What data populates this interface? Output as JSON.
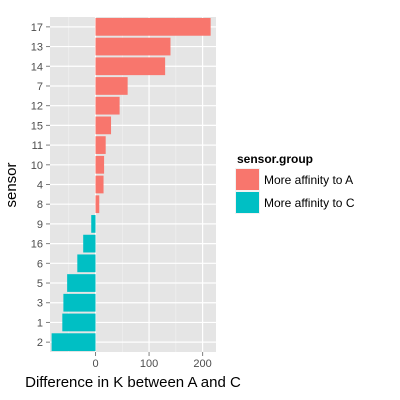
{
  "chart_data": {
    "type": "bar",
    "orientation": "horizontal",
    "xlabel": "Difference in K between A and C",
    "ylabel": "sensor",
    "xlim": [
      -85,
      225
    ],
    "xticks": [
      0,
      100,
      200
    ],
    "grid": true,
    "legend": {
      "title": "sensor.group",
      "placement": "right",
      "entries": [
        {
          "label": "More affinity to A",
          "color": "#F8766D"
        },
        {
          "label": "More affinity to C",
          "color": "#00BFC4"
        }
      ]
    },
    "bars": [
      {
        "sensor": "17",
        "value": 215,
        "group": "More affinity to A"
      },
      {
        "sensor": "13",
        "value": 140,
        "group": "More affinity to A"
      },
      {
        "sensor": "14",
        "value": 130,
        "group": "More affinity to A"
      },
      {
        "sensor": "7",
        "value": 60,
        "group": "More affinity to A"
      },
      {
        "sensor": "12",
        "value": 45,
        "group": "More affinity to A"
      },
      {
        "sensor": "15",
        "value": 29,
        "group": "More affinity to A"
      },
      {
        "sensor": "11",
        "value": 19,
        "group": "More affinity to A"
      },
      {
        "sensor": "10",
        "value": 16,
        "group": "More affinity to A"
      },
      {
        "sensor": "4",
        "value": 15,
        "group": "More affinity to A"
      },
      {
        "sensor": "8",
        "value": 7,
        "group": "More affinity to A"
      },
      {
        "sensor": "9",
        "value": -8,
        "group": "More affinity to C"
      },
      {
        "sensor": "16",
        "value": -23,
        "group": "More affinity to C"
      },
      {
        "sensor": "6",
        "value": -34,
        "group": "More affinity to C"
      },
      {
        "sensor": "5",
        "value": -53,
        "group": "More affinity to C"
      },
      {
        "sensor": "3",
        "value": -60,
        "group": "More affinity to C"
      },
      {
        "sensor": "1",
        "value": -62,
        "group": "More affinity to C"
      },
      {
        "sensor": "2",
        "value": -82,
        "group": "More affinity to C"
      }
    ]
  }
}
